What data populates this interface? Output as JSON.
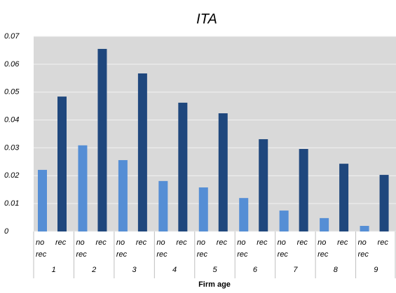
{
  "chart_data": {
    "type": "bar",
    "title": "ITA",
    "x_label": "Firm age",
    "categories": [
      "1",
      "2",
      "3",
      "4",
      "5",
      "6",
      "7",
      "8",
      "9"
    ],
    "series": [
      {
        "name": "no rec",
        "color": "#558ed5",
        "values": [
          0.0221,
          0.0309,
          0.0256,
          0.0181,
          0.0158,
          0.012,
          0.0075,
          0.0048,
          0.002
        ]
      },
      {
        "name": "rec",
        "color": "#1f477d",
        "values": [
          0.0484,
          0.0655,
          0.0567,
          0.0462,
          0.0424,
          0.0331,
          0.0296,
          0.0243,
          0.0203
        ]
      }
    ],
    "ylim": [
      0,
      0.07
    ],
    "yticks": [
      0,
      0.01,
      0.02,
      0.03,
      0.04,
      0.05,
      0.06,
      0.07
    ],
    "grid": true
  }
}
